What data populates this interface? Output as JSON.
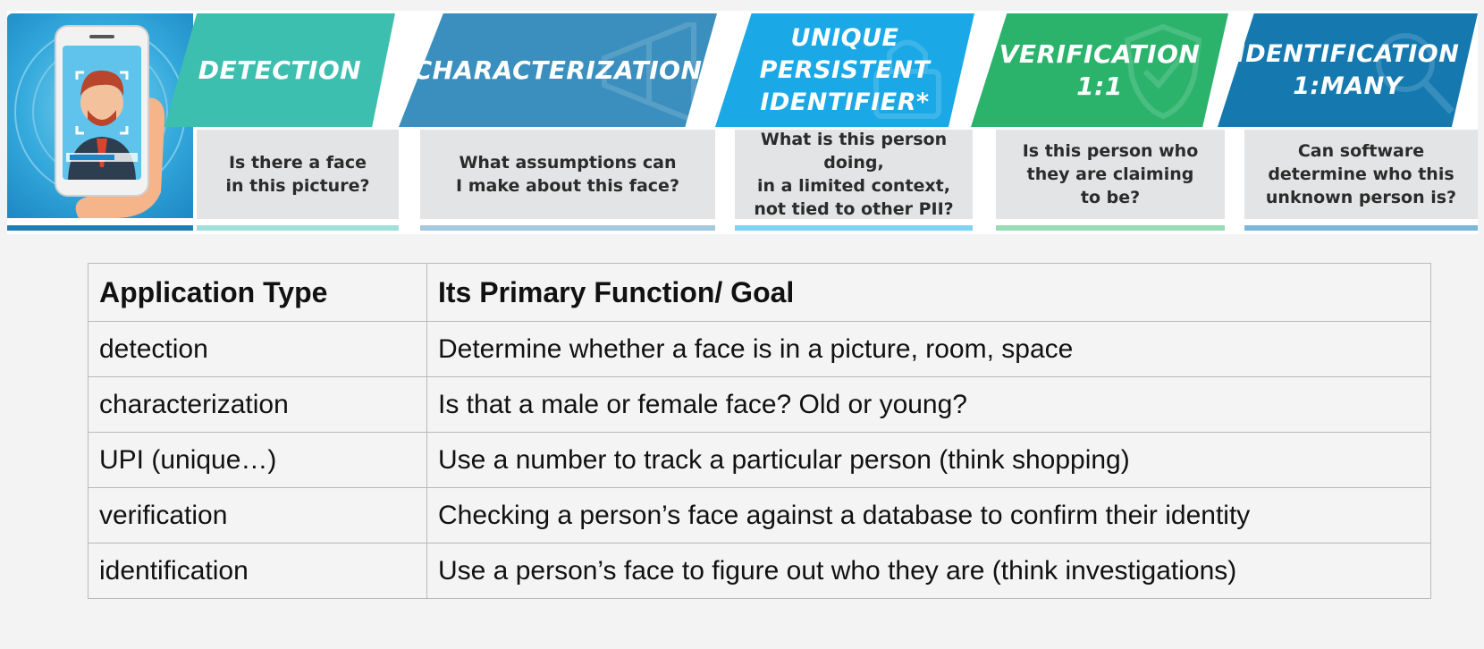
{
  "banner": {
    "illustration": {
      "name": "face recognition phone illustration"
    },
    "columns": [
      {
        "title": "DETECTION",
        "question": "Is there a face\nin this picture?",
        "color": "#3dbfb0",
        "underline": "#9fe0d9"
      },
      {
        "title": "CHARACTERIZATION",
        "question": "What assumptions can\nI make about this face?",
        "color": "#3b8fbe",
        "underline": "#a5c9de"
      },
      {
        "title": "UNIQUE\nPERSISTENT\nIDENTIFIER*",
        "question": "What is this person doing,\nin a limited context,\nnot tied to other PII?",
        "color": "#1aa8e6",
        "underline": "#7fd2f1"
      },
      {
        "title": "VERIFICATION\n1:1",
        "question": "Is this person who\nthey are claiming\nto be?",
        "color": "#2bb36c",
        "underline": "#98dbb5"
      },
      {
        "title": "IDENTIFICATION\n1:MANY",
        "question": "Can software\ndetermine who this\nunknown person is?",
        "color": "#1579b0",
        "underline": "#7ab7da"
      }
    ]
  },
  "table": {
    "headers": [
      "Application Type",
      "Its Primary Function/ Goal"
    ],
    "rows": [
      [
        "detection",
        "Determine whether a face is in a picture, room, space"
      ],
      [
        "characterization",
        "Is that a male or female face? Old or young?"
      ],
      [
        "UPI (unique…)",
        "Use a number to track a particular person (think shopping)"
      ],
      [
        "verification",
        "Checking a person’s face against a database to confirm their identity"
      ],
      [
        "identification",
        "Use a person’s face to figure out who they are (think investigations)"
      ]
    ]
  }
}
